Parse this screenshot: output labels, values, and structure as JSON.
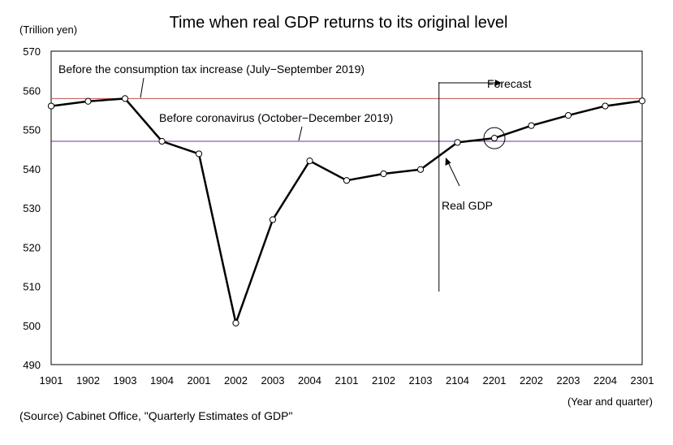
{
  "chart_data": {
    "type": "line",
    "title": "Time when real GDP returns to its original level",
    "ylabel": "(Trillion yen)",
    "xlabel": "(Year and quarter)",
    "source": "(Source) Cabinet Office, \"Quarterly Estimates of GDP\"",
    "ylim": [
      490,
      570
    ],
    "yticks": [
      "570",
      "560",
      "550",
      "540",
      "530",
      "520",
      "510",
      "500",
      "490"
    ],
    "categories": [
      "1901",
      "1902",
      "1903",
      "1904",
      "2001",
      "2002",
      "2003",
      "2004",
      "2101",
      "2102",
      "2103",
      "2104",
      "2201",
      "2202",
      "2203",
      "2204",
      "2301"
    ],
    "series": [
      {
        "name": "Real GDP",
        "values": [
          556,
          557.2,
          557.9,
          547,
          543.8,
          500.6,
          527,
          542,
          537,
          538.7,
          539.8,
          546.7,
          547.8,
          551,
          553.6,
          556,
          557.3
        ]
      }
    ],
    "reference_lines": [
      {
        "label": "Before the consumption tax increase (July−September 2019)",
        "value": 557.9,
        "color": "#c0504d"
      },
      {
        "label": "Before coronavirus (October−December 2019)",
        "value": 547,
        "color": "#7030a0"
      }
    ],
    "annotations": {
      "forecast": "Forecast",
      "series_label": "Real GDP"
    },
    "forecast_start_index": 10.5,
    "highlight_index": 12,
    "grid": false
  }
}
